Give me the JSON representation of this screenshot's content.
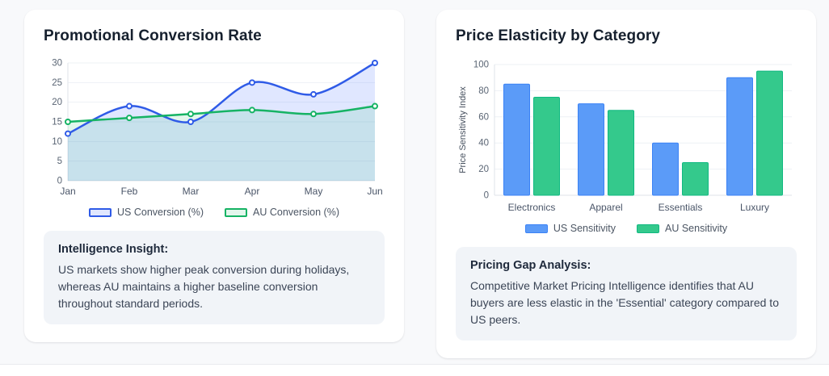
{
  "page": {
    "background": "#f8f9fb"
  },
  "cards": [
    {
      "title": "Promotional Conversion Rate",
      "insight_title": "Intelligence Insight:",
      "insight_text": "US markets show higher peak conversion during holidays, whereas AU maintains a higher baseline conversion throughout standard periods."
    },
    {
      "title": "Price Elasticity by Category",
      "insight_title": "Pricing Gap Analysis:",
      "insight_text": "Competitive Market Pricing Intelligence identifies that AU buyers are less elastic in the 'Essential' category compared to US peers."
    }
  ],
  "chart_data": [
    {
      "type": "line",
      "title": "Promotional Conversion Rate",
      "x": [
        "Jan",
        "Feb",
        "Mar",
        "Apr",
        "May",
        "Jun"
      ],
      "series": [
        {
          "name": "US Conversion (%)",
          "values": [
            12,
            19,
            15,
            25,
            22,
            30
          ],
          "color": "#2f5be7",
          "fill": "rgba(64,106,255,0.16)"
        },
        {
          "name": "AU Conversion (%)",
          "values": [
            15,
            16,
            17,
            18,
            17,
            19
          ],
          "color": "#16b364",
          "fill": "rgba(22,179,100,0.12)"
        }
      ],
      "ylim": [
        0,
        30
      ],
      "yticks": [
        0,
        5,
        10,
        15,
        20,
        25,
        30
      ],
      "xlabel": "",
      "ylabel": "",
      "grid": true,
      "legend_position": "bottom"
    },
    {
      "type": "bar",
      "title": "Price Elasticity by Category",
      "categories": [
        "Electronics",
        "Apparel",
        "Essentials",
        "Luxury"
      ],
      "series": [
        {
          "name": "US Sensitivity",
          "values": [
            85,
            70,
            40,
            90
          ],
          "color": "#5b9bf8",
          "border": "#3b82f6"
        },
        {
          "name": "AU Sensitivity",
          "values": [
            75,
            65,
            25,
            95
          ],
          "color": "#34c98c",
          "border": "#10b981"
        }
      ],
      "ylim": [
        0,
        100
      ],
      "yticks": [
        0,
        20,
        40,
        60,
        80,
        100
      ],
      "xlabel": "",
      "ylabel": "Price Sensitivity Index",
      "grid": true,
      "legend_position": "bottom"
    }
  ]
}
